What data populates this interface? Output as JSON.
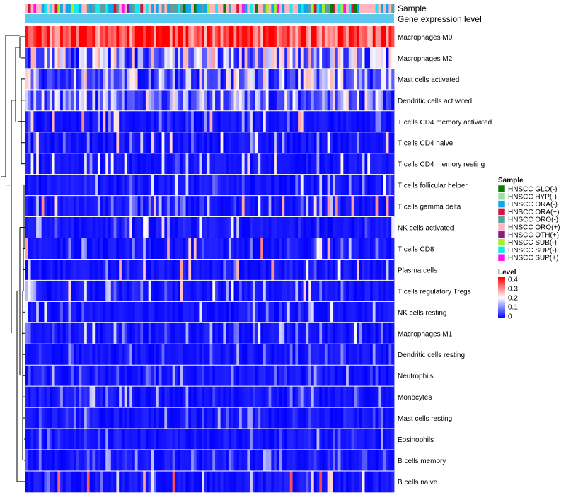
{
  "chart_data": {
    "type": "heatmap",
    "title": "",
    "annotation_labels": [
      "Sample",
      "Gene expression level"
    ],
    "row_labels": [
      "Macrophages M0",
      "Macrophages M2",
      "Mast cells activated",
      "Dendritic cells activated",
      "T cells CD4 memory activated",
      "T cells CD4 naive",
      "T cells CD4 memory resting",
      "T cells follicular helper",
      "T cells gamma delta",
      "NK cells activated",
      "T cells CD8",
      "Plasma cells",
      "T cells regulatory  Tregs",
      "NK cells resting",
      "Macrophages M1",
      "Dendritic cells resting",
      "Neutrophils",
      "Monocytes",
      "Mast cells resting",
      "Eosinophils",
      "B cells memory",
      "B cells naive"
    ],
    "row_mean_levels": [
      0.34,
      0.14,
      0.12,
      0.1,
      0.05,
      0.04,
      0.04,
      0.03,
      0.05,
      0.04,
      0.05,
      0.05,
      0.04,
      0.03,
      0.03,
      0.02,
      0.02,
      0.03,
      0.02,
      0.02,
      0.02,
      0.06
    ],
    "n_samples": 138,
    "sample_legend": {
      "title": "Sample",
      "items": [
        {
          "label": "HNSCC GLO(-)",
          "color": "#0a7a0a"
        },
        {
          "label": "HNSCC HYP(-)",
          "color": "#98e39a"
        },
        {
          "label": "HNSCC ORA(-)",
          "color": "#12a6e6"
        },
        {
          "label": "HNSCC ORA(+)",
          "color": "#d2143c"
        },
        {
          "label": "HNSCC ORO(-)",
          "color": "#5f9ea0"
        },
        {
          "label": "HNSCC ORO(+)",
          "color": "#ffb6c1"
        },
        {
          "label": "HNSCC OTH(+)",
          "color": "#8a1a8a"
        },
        {
          "label": "HNSCC SUB(-)",
          "color": "#a7ef2a"
        },
        {
          "label": "HNSCC SUP(-)",
          "color": "#16e8ee"
        },
        {
          "label": "HNSCC SUP(+)",
          "color": "#ff10ee"
        }
      ]
    },
    "level_legend": {
      "title": "Level",
      "range": [
        0,
        0.4
      ],
      "ticks": [
        "0.4",
        "0.3",
        "0.2",
        "0.1",
        "0"
      ],
      "colors": {
        "low": "#0000ff",
        "mid": "#ffffff",
        "high": "#ff0000"
      }
    },
    "gene_expression_bar_color": "#5bc8ee",
    "dendrogram": "rows clustered; left-side tree"
  }
}
